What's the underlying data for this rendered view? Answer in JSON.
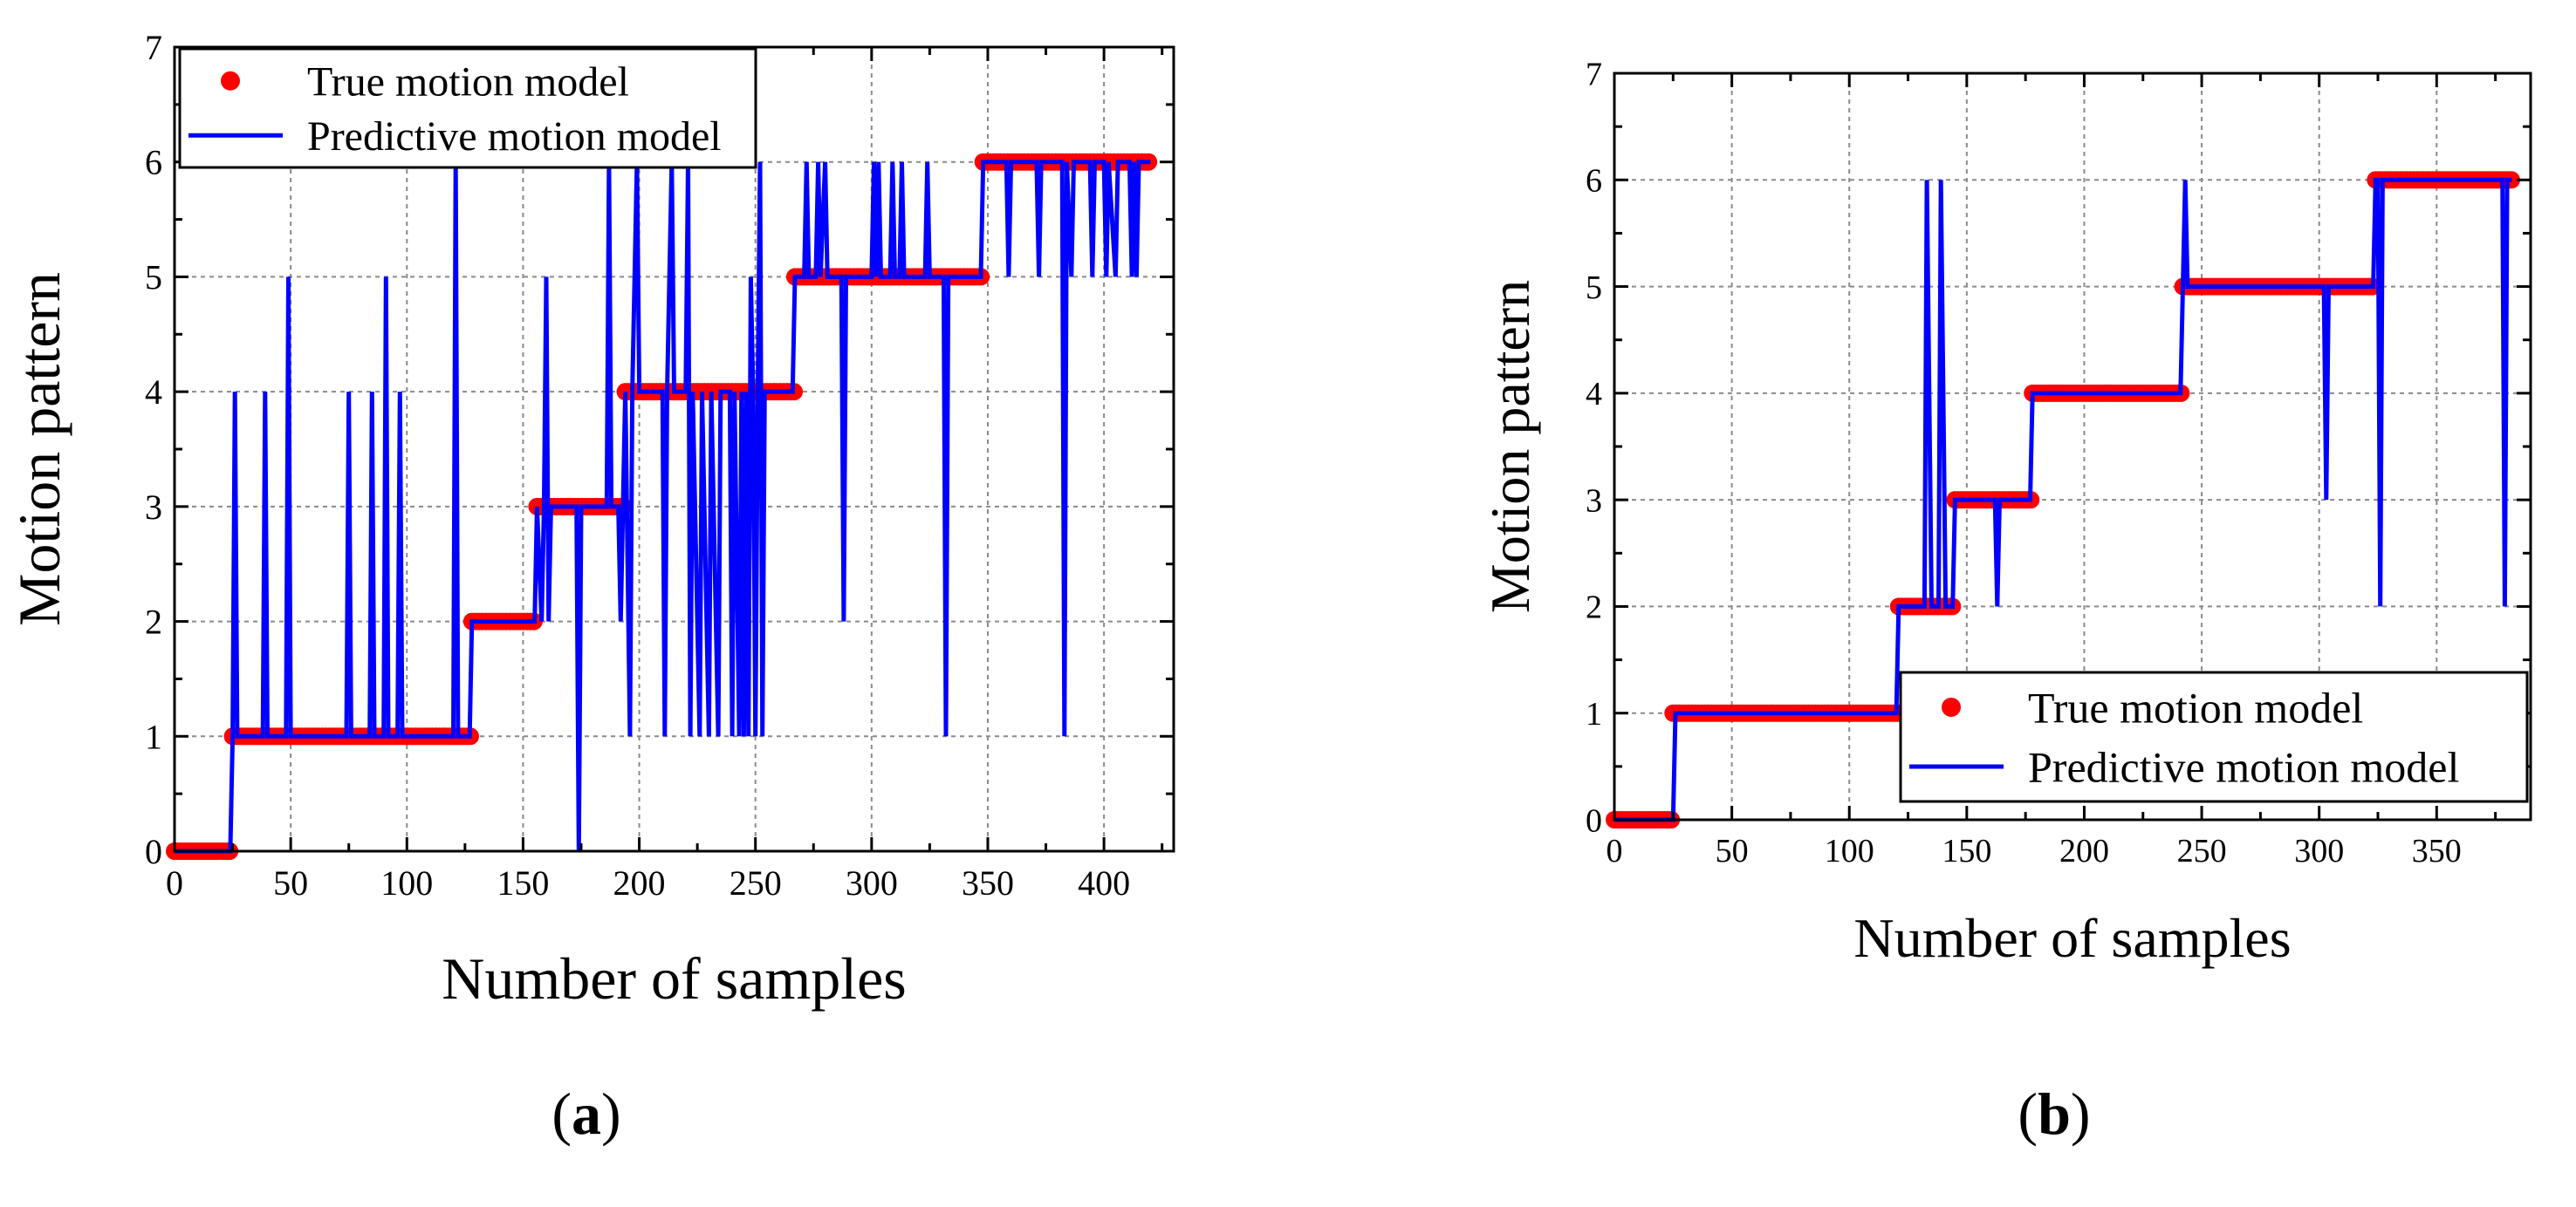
{
  "chart_data": [
    {
      "type": "line",
      "panel_label": "a",
      "xlabel": "Number of samples",
      "ylabel": "Motion pattern",
      "xlim": [
        0,
        430
      ],
      "ylim": [
        0,
        7
      ],
      "xticks": [
        0,
        50,
        100,
        150,
        200,
        250,
        300,
        350,
        400
      ],
      "yticks": [
        0,
        1,
        2,
        3,
        4,
        5,
        6,
        7
      ],
      "grid": true,
      "legend": {
        "placement": "top-left",
        "entries": [
          "True motion model",
          "Predictive motion model"
        ]
      },
      "series": [
        {
          "name": "True motion model",
          "style": "markers",
          "color": "#ff0000",
          "segments": [
            {
              "x_start": 0,
              "x_end": 25,
              "value": 0
            },
            {
              "x_start": 25,
              "x_end": 128,
              "value": 1
            },
            {
              "x_start": 128,
              "x_end": 156,
              "value": 2
            },
            {
              "x_start": 156,
              "x_end": 194,
              "value": 3
            },
            {
              "x_start": 194,
              "x_end": 267,
              "value": 4
            },
            {
              "x_start": 267,
              "x_end": 348,
              "value": 5
            },
            {
              "x_start": 348,
              "x_end": 420,
              "value": 6
            }
          ]
        },
        {
          "name": "Predictive motion model",
          "style": "line",
          "color": "#0000ff",
          "points": [
            [
              0,
              0
            ],
            [
              24,
              0
            ],
            [
              25,
              1
            ],
            [
              26,
              4
            ],
            [
              27,
              1
            ],
            [
              38,
              1
            ],
            [
              39,
              4
            ],
            [
              40,
              1
            ],
            [
              48,
              1
            ],
            [
              49,
              5
            ],
            [
              50,
              1
            ],
            [
              74,
              1
            ],
            [
              75,
              4
            ],
            [
              76,
              1
            ],
            [
              84,
              1
            ],
            [
              85,
              4
            ],
            [
              86,
              1
            ],
            [
              90,
              1
            ],
            [
              91,
              5
            ],
            [
              92,
              1
            ],
            [
              96,
              1
            ],
            [
              97,
              4
            ],
            [
              98,
              1
            ],
            [
              120,
              1
            ],
            [
              121,
              6
            ],
            [
              122,
              1
            ],
            [
              127,
              1
            ],
            [
              128,
              2
            ],
            [
              155,
              2
            ],
            [
              156,
              3
            ],
            [
              158,
              2
            ],
            [
              159,
              3
            ],
            [
              160,
              5
            ],
            [
              161,
              2
            ],
            [
              162,
              3
            ],
            [
              173,
              3
            ],
            [
              174,
              0
            ],
            [
              175,
              3
            ],
            [
              186,
              3
            ],
            [
              187,
              6
            ],
            [
              188,
              3
            ],
            [
              191,
              3
            ],
            [
              192,
              2
            ],
            [
              193,
              3
            ],
            [
              194,
              4
            ],
            [
              196,
              1
            ],
            [
              197,
              4
            ],
            [
              199,
              6
            ],
            [
              200,
              4
            ],
            [
              210,
              4
            ],
            [
              211,
              1
            ],
            [
              212,
              4
            ],
            [
              214,
              6
            ],
            [
              215,
              4
            ],
            [
              220,
              4
            ],
            [
              221,
              6
            ],
            [
              222,
              1
            ],
            [
              223,
              4
            ],
            [
              226,
              1
            ],
            [
              227,
              4
            ],
            [
              230,
              1
            ],
            [
              231,
              4
            ],
            [
              234,
              1
            ],
            [
              235,
              4
            ],
            [
              239,
              4
            ],
            [
              240,
              1
            ],
            [
              241,
              4
            ],
            [
              243,
              1
            ],
            [
              244,
              4
            ],
            [
              245,
              1
            ],
            [
              246,
              4
            ],
            [
              247,
              1
            ],
            [
              248,
              5
            ],
            [
              249,
              4
            ],
            [
              250,
              1
            ],
            [
              251,
              4
            ],
            [
              252,
              6
            ],
            [
              253,
              1
            ],
            [
              254,
              4
            ],
            [
              266,
              4
            ],
            [
              267,
              5
            ],
            [
              271,
              5
            ],
            [
              272,
              6
            ],
            [
              273,
              5
            ],
            [
              276,
              5
            ],
            [
              277,
              6
            ],
            [
              278,
              5
            ],
            [
              280,
              6
            ],
            [
              281,
              5
            ],
            [
              287,
              5
            ],
            [
              288,
              2
            ],
            [
              289,
              5
            ],
            [
              300,
              5
            ],
            [
              301,
              6
            ],
            [
              302,
              5
            ],
            [
              303,
              6
            ],
            [
              304,
              5
            ],
            [
              308,
              5
            ],
            [
              309,
              6
            ],
            [
              310,
              5
            ],
            [
              312,
              5
            ],
            [
              313,
              6
            ],
            [
              314,
              5
            ],
            [
              323,
              5
            ],
            [
              324,
              6
            ],
            [
              325,
              5
            ],
            [
              331,
              5
            ],
            [
              332,
              1
            ],
            [
              333,
              5
            ],
            [
              347,
              5
            ],
            [
              348,
              6
            ],
            [
              358,
              6
            ],
            [
              359,
              5
            ],
            [
              360,
              6
            ],
            [
              371,
              6
            ],
            [
              372,
              5
            ],
            [
              373,
              6
            ],
            [
              382,
              6
            ],
            [
              383,
              1
            ],
            [
              384,
              6
            ],
            [
              386,
              5
            ],
            [
              387,
              6
            ],
            [
              394,
              6
            ],
            [
              395,
              5
            ],
            [
              396,
              6
            ],
            [
              400,
              6
            ],
            [
              401,
              5
            ],
            [
              402,
              6
            ],
            [
              405,
              5
            ],
            [
              406,
              6
            ],
            [
              411,
              6
            ],
            [
              412,
              5
            ],
            [
              413,
              6
            ],
            [
              414,
              5
            ],
            [
              415,
              6
            ],
            [
              420,
              6
            ]
          ]
        }
      ]
    },
    {
      "type": "line",
      "panel_label": "b",
      "xlabel": "Number of samples",
      "ylabel": "Motion pattern",
      "xlim": [
        0,
        390
      ],
      "ylim": [
        0,
        7
      ],
      "xticks": [
        0,
        50,
        100,
        150,
        200,
        250,
        300,
        350
      ],
      "yticks": [
        0,
        1,
        2,
        3,
        4,
        5,
        6,
        7
      ],
      "grid": true,
      "legend": {
        "placement": "bottom-right",
        "entries": [
          "True motion model",
          "Predictive motion model"
        ]
      },
      "series": [
        {
          "name": "True motion model",
          "style": "markers",
          "color": "#ff0000",
          "segments": [
            {
              "x_start": 0,
              "x_end": 25,
              "value": 0
            },
            {
              "x_start": 25,
              "x_end": 121,
              "value": 1
            },
            {
              "x_start": 121,
              "x_end": 145,
              "value": 2
            },
            {
              "x_start": 145,
              "x_end": 178,
              "value": 3
            },
            {
              "x_start": 178,
              "x_end": 242,
              "value": 4
            },
            {
              "x_start": 242,
              "x_end": 324,
              "value": 5
            },
            {
              "x_start": 324,
              "x_end": 382,
              "value": 6
            }
          ]
        },
        {
          "name": "Predictive motion model",
          "style": "line",
          "color": "#0000ff",
          "points": [
            [
              0,
              0
            ],
            [
              25,
              0
            ],
            [
              26,
              1
            ],
            [
              120,
              1
            ],
            [
              121,
              2
            ],
            [
              132,
              2
            ],
            [
              133,
              6
            ],
            [
              135,
              2
            ],
            [
              138,
              2
            ],
            [
              139,
              6
            ],
            [
              141,
              2
            ],
            [
              144,
              2
            ],
            [
              145,
              3
            ],
            [
              162,
              3
            ],
            [
              163,
              2
            ],
            [
              164,
              3
            ],
            [
              177,
              3
            ],
            [
              178,
              4
            ],
            [
              241,
              4
            ],
            [
              242,
              5
            ],
            [
              243,
              6
            ],
            [
              244,
              5
            ],
            [
              302,
              5
            ],
            [
              303,
              3
            ],
            [
              304,
              5
            ],
            [
              323,
              5
            ],
            [
              324,
              6
            ],
            [
              325,
              6
            ],
            [
              326,
              2
            ],
            [
              327,
              6
            ],
            [
              378,
              6
            ],
            [
              379,
              2
            ],
            [
              380,
              6
            ],
            [
              382,
              6
            ]
          ]
        }
      ]
    }
  ]
}
